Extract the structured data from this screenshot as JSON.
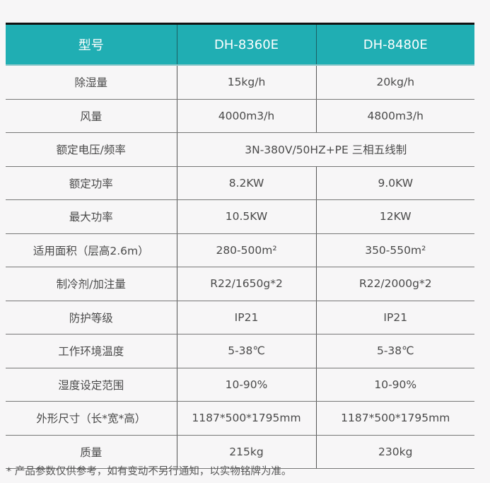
{
  "header": [
    "型号",
    "DH-8360E",
    "DH-8480E"
  ],
  "rows": [
    [
      "除湿量",
      "15kg/h",
      "20kg/h"
    ],
    [
      "风量",
      "4000m3/h",
      "4800m3/h"
    ],
    [
      "额定电压/频率",
      "3N-380V/50HZ+PE 三相五线制"
    ],
    [
      "额定功率",
      "8.2KW",
      "9.0KW"
    ],
    [
      "最大功率",
      "10.5KW",
      "12KW"
    ],
    [
      "适用面积（层高2.6m）",
      "280-500m²",
      "350-550m²"
    ],
    [
      "制冷剂/加注量",
      "R22/1650g*2",
      "R22/2000g*2"
    ],
    [
      "防护等级",
      "IP21",
      "IP21"
    ],
    [
      "工作环境温度",
      "5-38℃",
      "5-38℃"
    ],
    [
      "湿度设定范围",
      "10-90%",
      "10-90%"
    ],
    [
      "外形尺寸（长*宽*高）",
      "1187*500*1795mm",
      "1187*500*1795mm"
    ],
    [
      "质量",
      "215kg",
      "230kg"
    ]
  ],
  "footnote": "* 产品参数仅供参考，如有变动不另行通知，以实物铭牌为准。",
  "colors": {
    "header_bg": "#20aeb3",
    "header_text": "#ffffff"
  }
}
